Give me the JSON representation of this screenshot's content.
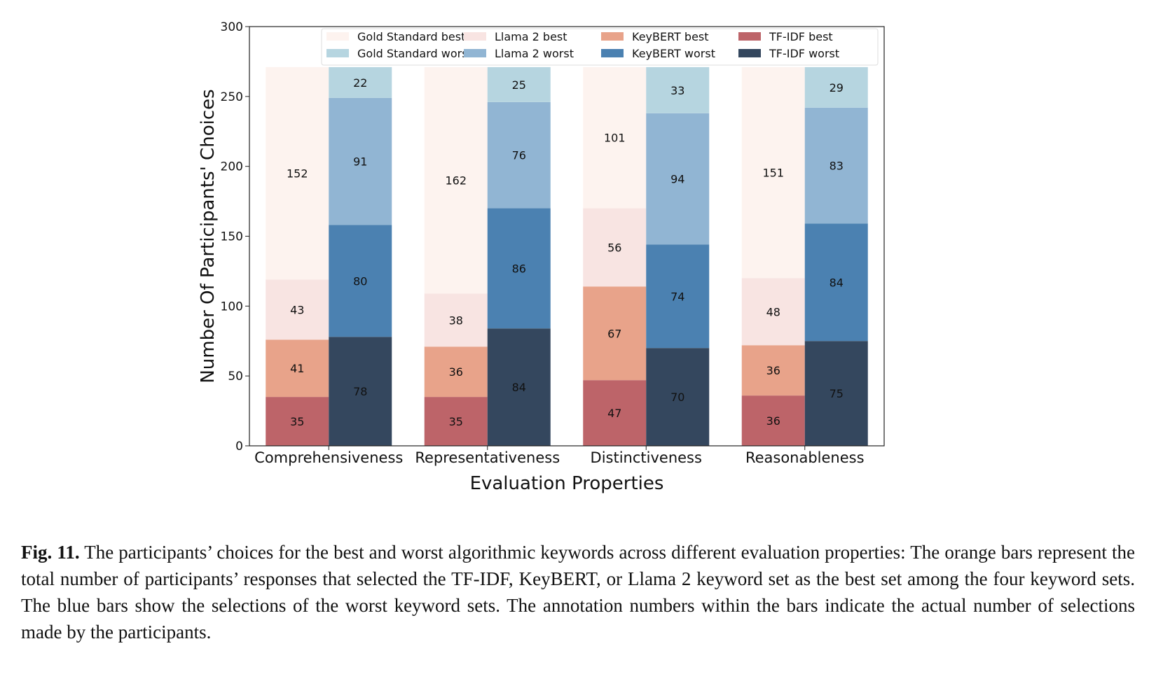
{
  "chart_data": {
    "type": "bar",
    "stacked": true,
    "categories": [
      "Comprehensiveness",
      "Representativeness",
      "Distinctiveness",
      "Reasonableness"
    ],
    "xlabel": "Evaluation Properties",
    "ylabel": "Number Of Participants' Choices",
    "ylim": [
      0,
      300
    ],
    "yticks": [
      0,
      50,
      100,
      150,
      200,
      250,
      300
    ],
    "legend_position": "top",
    "groups": [
      {
        "key": "best",
        "series": [
          {
            "name": "TF-IDF best",
            "color": "#bd6469",
            "values": [
              35,
              35,
              47,
              36
            ]
          },
          {
            "name": "KeyBERT best",
            "color": "#e8a38a",
            "values": [
              41,
              36,
              67,
              36
            ]
          },
          {
            "name": "Llama 2 best",
            "color": "#f8e4e2",
            "values": [
              43,
              38,
              56,
              48
            ]
          },
          {
            "name": "Gold Standard best",
            "color": "#fdf3ef",
            "values": [
              152,
              162,
              101,
              151
            ]
          }
        ]
      },
      {
        "key": "worst",
        "series": [
          {
            "name": "TF-IDF worst",
            "color": "#34475e",
            "values": [
              78,
              84,
              70,
              75
            ]
          },
          {
            "name": "KeyBERT worst",
            "color": "#4b81b1",
            "values": [
              80,
              86,
              74,
              84
            ]
          },
          {
            "name": "Llama 2 worst",
            "color": "#91b5d3",
            "values": [
              91,
              76,
              94,
              83
            ]
          },
          {
            "name": "Gold Standard worst",
            "color": "#b6d5e0",
            "values": [
              22,
              25,
              33,
              29
            ]
          }
        ]
      }
    ],
    "legend_order": [
      "Gold Standard best",
      "Llama 2 best",
      "KeyBERT best",
      "TF-IDF best",
      "Gold Standard worst",
      "Llama 2 worst",
      "KeyBERT worst",
      "TF-IDF worst"
    ]
  },
  "caption": {
    "label": "Fig. 11.",
    "text": "The participants’ choices for the best and worst algorithmic keywords across different evaluation properties: The orange bars represent the total number of participants’ responses that selected the TF-IDF, KeyBERT, or Llama 2 keyword set as the best set among the four keyword sets. The blue bars show the selections of the worst keyword sets. The annotation numbers within the bars indicate the actual number of selections made by the participants."
  }
}
